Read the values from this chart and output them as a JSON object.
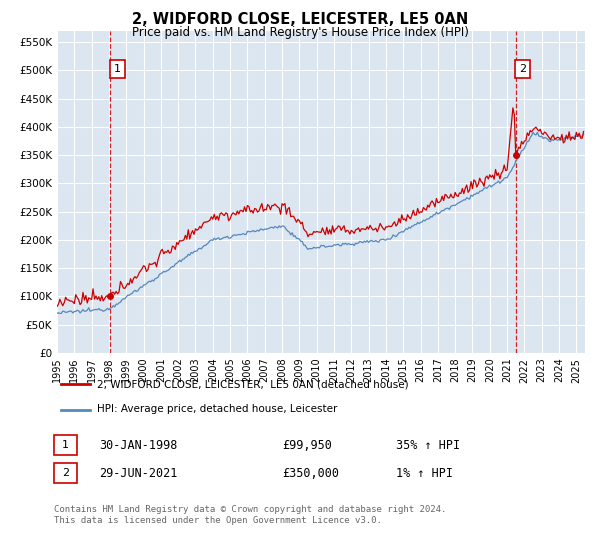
{
  "title": "2, WIDFORD CLOSE, LEICESTER, LE5 0AN",
  "subtitle": "Price paid vs. HM Land Registry's House Price Index (HPI)",
  "ylim": [
    0,
    570000
  ],
  "xlim_start": 1995.0,
  "xlim_end": 2025.5,
  "plot_bg_color": "#dce6f1",
  "grid_color": "#ffffff",
  "sale1_date": 1998.08,
  "sale1_price": 99950,
  "sale2_date": 2021.5,
  "sale2_price": 350000,
  "legend_label_red": "2, WIDFORD CLOSE, LEICESTER,  LE5 0AN (detached house)",
  "legend_label_blue": "HPI: Average price, detached house, Leicester",
  "annotation1_label": "1",
  "annotation2_label": "2",
  "table_row1": [
    "1",
    "30-JAN-1998",
    "£99,950",
    "35% ↑ HPI"
  ],
  "table_row2": [
    "2",
    "29-JUN-2021",
    "£350,000",
    "1% ↑ HPI"
  ],
  "footer": "Contains HM Land Registry data © Crown copyright and database right 2024.\nThis data is licensed under the Open Government Licence v3.0.",
  "red_color": "#cc0000",
  "blue_color": "#5588bb",
  "dashed_color": "#cc0000",
  "title_fontsize": 11,
  "subtitle_fontsize": 9
}
